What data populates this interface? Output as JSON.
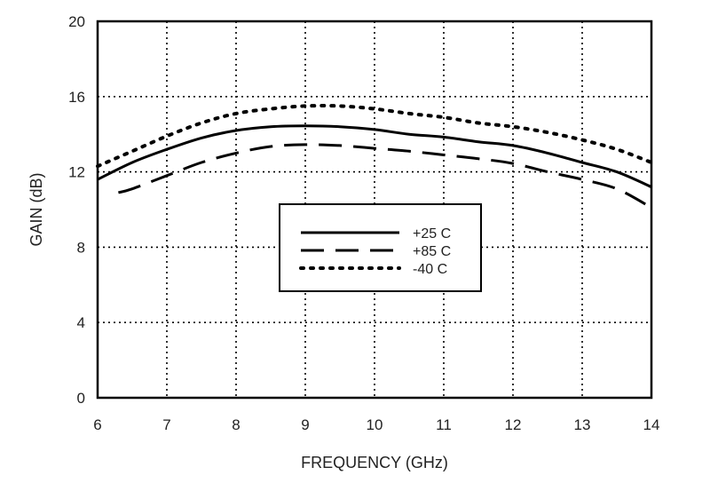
{
  "chart_data": {
    "type": "line",
    "xlabel": "FREQUENCY (GHz)",
    "ylabel": "GAIN (dB)",
    "xlim": [
      6,
      14
    ],
    "ylim": [
      0,
      20
    ],
    "x_ticks": [
      6,
      7,
      8,
      9,
      10,
      11,
      12,
      13,
      14
    ],
    "y_ticks": [
      0,
      4,
      8,
      12,
      16,
      20
    ],
    "grid": true,
    "legend_position": "center",
    "series": [
      {
        "name": "+25 C",
        "style": "solid",
        "color": "#000000",
        "x": [
          6,
          6.5,
          7,
          7.5,
          8,
          8.5,
          9,
          9.5,
          10,
          10.5,
          11,
          11.5,
          12,
          12.5,
          13,
          13.5,
          14
        ],
        "y": [
          11.6,
          12.5,
          13.2,
          13.8,
          14.2,
          14.4,
          14.45,
          14.4,
          14.25,
          14.0,
          13.85,
          13.6,
          13.4,
          13.0,
          12.5,
          12.0,
          11.2
        ]
      },
      {
        "name": "+85 C",
        "style": "dashed",
        "color": "#000000",
        "x": [
          6.3,
          6.5,
          7,
          7.5,
          8,
          8.5,
          9,
          9.5,
          10,
          10.5,
          11,
          11.5,
          12,
          12.5,
          13,
          13.5,
          14
        ],
        "y": [
          10.9,
          11.1,
          11.8,
          12.5,
          13.0,
          13.35,
          13.45,
          13.4,
          13.25,
          13.1,
          12.9,
          12.7,
          12.45,
          12.0,
          11.6,
          11.1,
          10.1
        ]
      },
      {
        "name": "-40 C",
        "style": "dotted",
        "color": "#000000",
        "x": [
          6,
          6.5,
          7,
          7.5,
          8,
          8.5,
          9,
          9.5,
          10,
          10.5,
          11,
          11.5,
          12,
          12.5,
          13,
          13.5,
          14
        ],
        "y": [
          12.3,
          13.1,
          13.9,
          14.6,
          15.1,
          15.35,
          15.5,
          15.5,
          15.35,
          15.1,
          14.9,
          14.6,
          14.4,
          14.1,
          13.7,
          13.2,
          12.5
        ]
      }
    ]
  }
}
